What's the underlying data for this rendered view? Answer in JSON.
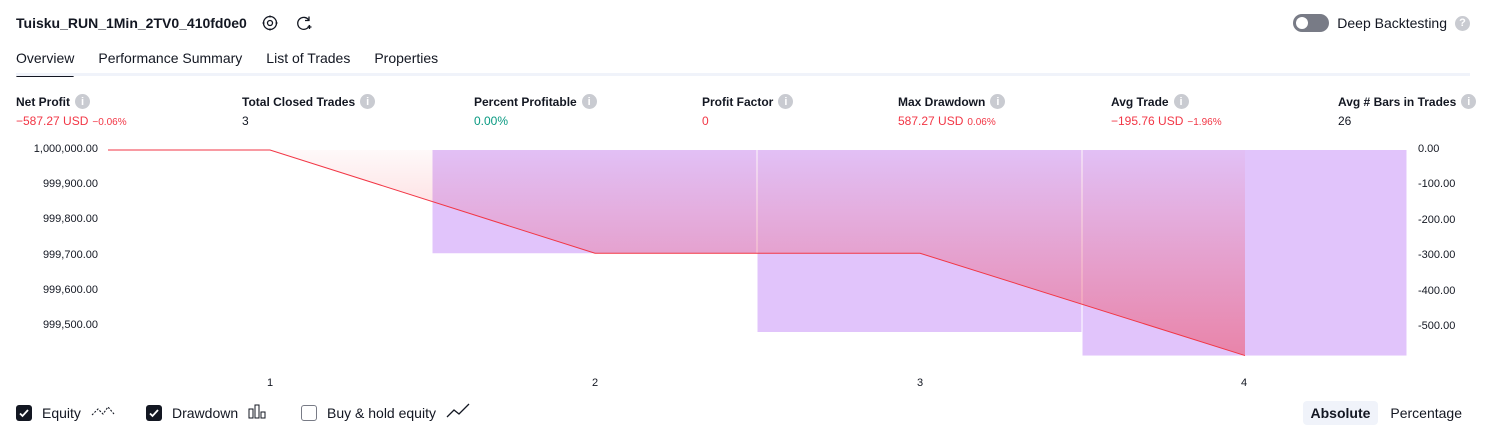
{
  "header": {
    "title": "Tuisku_RUN_1Min_2TV0_410fd0e0",
    "settings_icon": "gear-icon",
    "refresh_icon": "refresh-add-icon",
    "toggle_label": "Deep Backtesting",
    "toggle_on": false
  },
  "tabs": [
    {
      "label": "Overview",
      "active": true
    },
    {
      "label": "Performance Summary",
      "active": false
    },
    {
      "label": "List of Trades",
      "active": false
    },
    {
      "label": "Properties",
      "active": false
    }
  ],
  "metrics": {
    "net_profit": {
      "label": "Net Profit",
      "value": "−587.27 USD",
      "pct": "−0.06%"
    },
    "total_closed_trades": {
      "label": "Total Closed Trades",
      "value": "3"
    },
    "percent_profitable": {
      "label": "Percent Profitable",
      "value": "0.00%"
    },
    "profit_factor": {
      "label": "Profit Factor",
      "value": "0"
    },
    "max_drawdown": {
      "label": "Max Drawdown",
      "value": "587.27 USD",
      "pct": "0.06%"
    },
    "avg_trade": {
      "label": "Avg Trade",
      "value": "−195.76 USD",
      "pct": "−1.96%"
    },
    "avg_bars": {
      "label": "Avg # Bars in Trades",
      "value": "26"
    }
  },
  "colors": {
    "equity_line": "#f23645",
    "drawdown_fill": "#e1c4fb",
    "negative": "#f23645",
    "positive": "#089981"
  },
  "chart_data": {
    "type": "line",
    "x_ticks": [
      "1",
      "2",
      "3",
      "4"
    ],
    "left_axis_ticks": [
      "1,000,000.00",
      "999,900.00",
      "999,800.00",
      "999,700.00",
      "999,600.00",
      "999,500.00"
    ],
    "right_axis_ticks": [
      "0.00",
      "-100.00",
      "-200.00",
      "-300.00",
      "-400.00",
      "-500.00"
    ],
    "left_ylim": [
      999400,
      1000000
    ],
    "right_ylim": [
      -600,
      0
    ],
    "series": [
      {
        "name": "Equity",
        "x": [
          0,
          1,
          2,
          3,
          4
        ],
        "values": [
          1000000,
          1000000,
          999705,
          999705,
          999412.73
        ]
      },
      {
        "name": "Drawdown",
        "x": [
          1,
          2,
          3,
          4
        ],
        "values": [
          0,
          -295,
          -520,
          -587.27
        ]
      }
    ],
    "drawdown_bars": [
      {
        "x": 2,
        "value": -295
      },
      {
        "x": 3,
        "value": -520
      },
      {
        "x": 4,
        "value": -587.27
      }
    ]
  },
  "legend": {
    "equity": {
      "label": "Equity",
      "checked": true
    },
    "drawdown": {
      "label": "Drawdown",
      "checked": true
    },
    "buy_hold": {
      "label": "Buy & hold equity",
      "checked": false
    }
  },
  "view_toggle": {
    "absolute": "Absolute",
    "percentage": "Percentage",
    "selected": "Absolute"
  }
}
